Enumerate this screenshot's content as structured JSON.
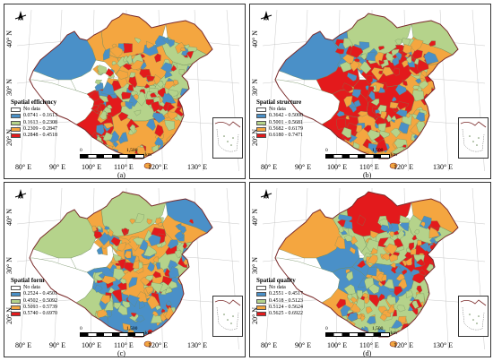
{
  "colors": {
    "nodata": "#ffffff",
    "blue": "#4a90c8",
    "green": "#b5d38b",
    "orange": "#f4a640",
    "red": "#e31a1c",
    "boundary": "#7a2a2a"
  },
  "icons": [
    "north-arrow-icon"
  ],
  "scale": {
    "zero": "0",
    "dist": "1,500",
    "unit": "km"
  },
  "panels": [
    {
      "title": "Spatial efficiency",
      "caption": "(a)",
      "nodata": "No data",
      "classes": [
        "0.0741 - 0.1613",
        "0.1613 - 0.2308",
        "0.2309 - 0.2847",
        "0.2848 - 0.4518"
      ],
      "lat": [
        "40° N",
        "30° N",
        "20° N"
      ],
      "lon": [
        "80° E",
        "90° E",
        "100° E",
        "110° E",
        "120° E",
        "130° E"
      ]
    },
    {
      "title": "Spatial structure",
      "caption": "(b)",
      "nodata": "No data",
      "classes": [
        "0.3642 - 0.5000",
        "0.5001 - 0.5681",
        "0.5682 - 0.6179",
        "0.6180 - 0.7471"
      ],
      "lat": [
        "40° N",
        "30° N",
        "20° N"
      ],
      "lon": [
        "80° E",
        "90° E",
        "100° E",
        "110° E",
        "120° E",
        "130° E"
      ]
    },
    {
      "title": "Spatial form",
      "caption": "(c)",
      "nodata": "No data",
      "classes": [
        "0.2524 - 0.4501",
        "0.4502 - 0.5092",
        "0.5093 - 0.5739",
        "0.5740 - 0.6970"
      ],
      "lat": [
        "40° N",
        "30° N",
        "20° N"
      ],
      "lon": [
        "80° E",
        "90° E",
        "100° E",
        "110° E",
        "120° E",
        "130° E"
      ]
    },
    {
      "title": "Spatial quality",
      "caption": "(d)",
      "nodata": "No data",
      "classes": [
        "0.2551 - 0.4517",
        "0.4518 - 0.5123",
        "0.5124 - 0.5624",
        "0.5625 - 0.6922"
      ],
      "lat": [
        "40° N",
        "30° N",
        "20° N"
      ],
      "lon": [
        "80° E",
        "90° E",
        "100° E",
        "110° E",
        "120° E",
        "130° E"
      ]
    }
  ]
}
